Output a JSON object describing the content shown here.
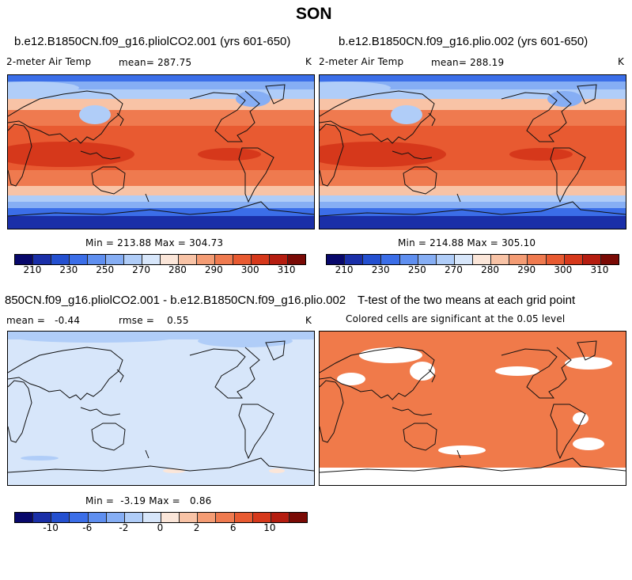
{
  "main_title": "SON",
  "panels": {
    "p1": {
      "title": "b.e12.B1850CN.f09_g16.pliolCO2.001 (yrs 601-650)",
      "left_label": "2-meter Air Temp",
      "mean_label": "mean= 287.75",
      "unit": "K",
      "minmax": "Min = 213.88 Max = 304.73"
    },
    "p2": {
      "title": "b.e12.B1850CN.f09_g16.plio.002 (yrs 601-650)",
      "left_label": "2-meter Air Temp",
      "mean_label": "mean= 288.19",
      "unit": "K",
      "minmax": "Min = 214.88 Max = 305.10"
    },
    "p3": {
      "title": "850CN.f09_g16.pliolCO2.001 - b.e12.B1850CN.f09_g16.plio.002",
      "mean_label": "mean =   -0.44",
      "rmse_label": "rmse =    0.55",
      "unit": "K",
      "minmax": "Min =  -3.19 Max =   0.86"
    },
    "p4": {
      "title": "T-test of the two means at each grid point",
      "subtitle": "Colored cells are significant at the 0.05 level"
    }
  },
  "colorbar_abs": {
    "ticks": [
      "210",
      "230",
      "250",
      "270",
      "280",
      "290",
      "300",
      "310"
    ],
    "colors": [
      "#08086b",
      "#1a2fa8",
      "#2450d0",
      "#3b6ee8",
      "#5f8ff0",
      "#86aef4",
      "#b0cdf8",
      "#d7e6fa",
      "#fbe6d9",
      "#f8c3a6",
      "#f49c74",
      "#ef7a4f",
      "#e85a31",
      "#d6381b",
      "#b51d10",
      "#7a0a05"
    ]
  },
  "colorbar_diff": {
    "ticks": [
      "-10",
      "-6",
      "-2",
      "0",
      "2",
      "6",
      "10"
    ],
    "colors": [
      "#08086b",
      "#1a2fa8",
      "#2450d0",
      "#3b6ee8",
      "#5f8ff0",
      "#86aef4",
      "#b0cdf8",
      "#d7e6fa",
      "#fbe6d9",
      "#f8c3a6",
      "#f49c74",
      "#ef7a4f",
      "#e85a31",
      "#d6381b",
      "#b51d10",
      "#7a0a05"
    ]
  },
  "map_colors": {
    "polar_deep": "#1a2fa8",
    "polar": "#3b6ee8",
    "subpolar": "#86aef4",
    "mid_cool": "#b0cdf8",
    "mid_warm": "#f8c3a6",
    "warm": "#ef7a4f",
    "tropics": "#e85a31",
    "hot": "#d6381b",
    "diff_bg": "#d7e6fa",
    "diff_cool": "#b0cdf8",
    "ttest": "#f07a4a"
  }
}
